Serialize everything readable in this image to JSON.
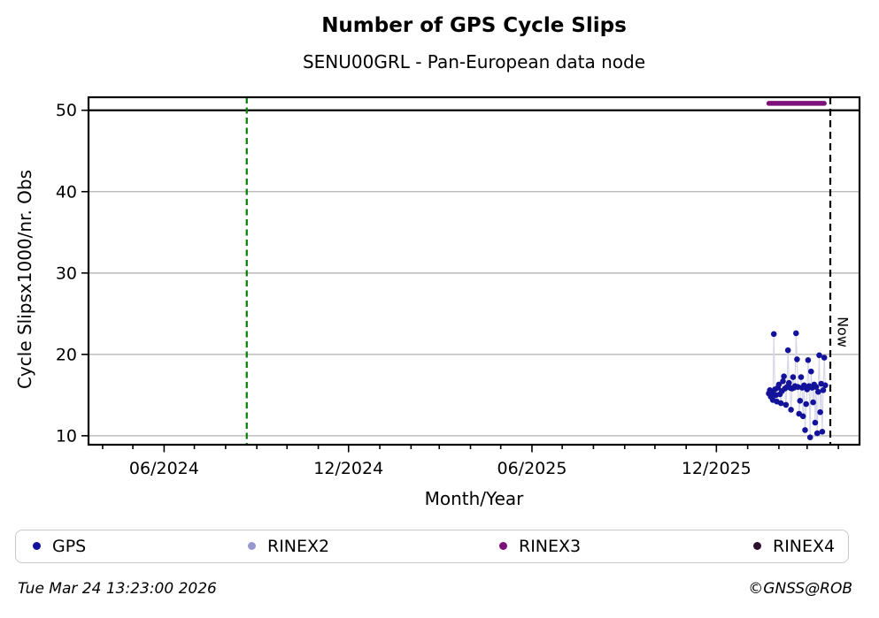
{
  "header": {
    "title": "Number of GPS Cycle Slips",
    "subtitle": "SENU00GRL - Pan-European data node"
  },
  "chart_data": {
    "type": "scatter",
    "title": "Number of GPS Cycle Slips",
    "subtitle": "SENU00GRL - Pan-European data node",
    "xlabel": "Month/Year",
    "ylabel": "Cycle Slipsx1000/nr. Obs",
    "x_range": [
      "2024-03-18",
      "2026-04-22"
    ],
    "y_range": [
      8.9,
      51.6
    ],
    "y_ticks": [
      10,
      20,
      30,
      40,
      50
    ],
    "x_major_ticks": [
      {
        "date": "2024-06-01",
        "label": "06/2024"
      },
      {
        "date": "2024-12-01",
        "label": "12/2024"
      },
      {
        "date": "2025-06-01",
        "label": "06/2025"
      },
      {
        "date": "2025-12-01",
        "label": "12/2025"
      }
    ],
    "x_minor_ticks": {
      "start": "2024-04-01",
      "end": "2026-04-01",
      "step_months": 1
    },
    "grid_color": "#b2b2b2",
    "cap_line": {
      "value": 50,
      "color": "#000000"
    },
    "green_event_line": {
      "date": "2024-08-22",
      "color": "#007f00"
    },
    "now_line": {
      "date": "2026-03-24",
      "label": "Now",
      "color": "#000000"
    },
    "series": [
      {
        "name": "GPS",
        "type": "scatter-line",
        "color": "#12129b",
        "connector_color": "#d6d6e8",
        "points": [
          [
            "2026-01-22",
            15.2
          ],
          [
            "2026-01-23",
            15.6
          ],
          [
            "2026-01-24",
            14.8
          ],
          [
            "2026-01-25",
            15.3
          ],
          [
            "2026-01-26",
            14.4
          ],
          [
            "2026-01-27",
            22.5
          ],
          [
            "2026-01-28",
            15.7
          ],
          [
            "2026-01-29",
            15.0
          ],
          [
            "2026-01-30",
            14.2
          ],
          [
            "2026-01-31",
            15.9
          ],
          [
            "2026-02-01",
            16.3
          ],
          [
            "2026-02-02",
            15.1
          ],
          [
            "2026-02-03",
            14.0
          ],
          [
            "2026-02-04",
            15.5
          ],
          [
            "2026-02-05",
            16.7
          ],
          [
            "2026-02-06",
            17.3
          ],
          [
            "2026-02-07",
            15.8
          ],
          [
            "2026-02-08",
            13.8
          ],
          [
            "2026-02-09",
            16.0
          ],
          [
            "2026-02-10",
            20.5
          ],
          [
            "2026-02-11",
            16.5
          ],
          [
            "2026-02-12",
            15.9
          ],
          [
            "2026-02-13",
            13.2
          ],
          [
            "2026-02-14",
            15.8
          ],
          [
            "2026-02-15",
            17.2
          ],
          [
            "2026-02-16",
            15.9
          ],
          [
            "2026-02-17",
            16.1
          ],
          [
            "2026-02-18",
            22.6
          ],
          [
            "2026-02-19",
            19.4
          ],
          [
            "2026-02-20",
            16.0
          ],
          [
            "2026-02-21",
            12.7
          ],
          [
            "2026-02-22",
            14.3
          ],
          [
            "2026-02-23",
            17.2
          ],
          [
            "2026-02-24",
            15.9
          ],
          [
            "2026-02-25",
            12.4
          ],
          [
            "2026-02-26",
            16.2
          ],
          [
            "2026-02-27",
            10.7
          ],
          [
            "2026-02-28",
            13.9
          ],
          [
            "2026-03-01",
            15.7
          ],
          [
            "2026-03-02",
            19.3
          ],
          [
            "2026-03-03",
            16.1
          ],
          [
            "2026-03-04",
            9.8
          ],
          [
            "2026-03-05",
            17.9
          ],
          [
            "2026-03-06",
            15.9
          ],
          [
            "2026-03-07",
            14.1
          ],
          [
            "2026-03-08",
            16.3
          ],
          [
            "2026-03-09",
            11.6
          ],
          [
            "2026-03-10",
            16.0
          ],
          [
            "2026-03-11",
            10.3
          ],
          [
            "2026-03-12",
            15.4
          ],
          [
            "2026-03-13",
            19.9
          ],
          [
            "2026-03-14",
            12.9
          ],
          [
            "2026-03-15",
            16.4
          ],
          [
            "2026-03-16",
            10.5
          ],
          [
            "2026-03-17",
            15.6
          ],
          [
            "2026-03-18",
            19.6
          ],
          [
            "2026-03-19",
            16.2
          ]
        ]
      },
      {
        "name": "RINEX3",
        "type": "band-line",
        "color": "#7c117c",
        "start": "2026-01-22",
        "end": "2026-03-18",
        "value": 50.85
      }
    ]
  },
  "legend": {
    "items": [
      {
        "label": "GPS",
        "color": "#12129b"
      },
      {
        "label": "RINEX2",
        "color": "#9898d0"
      },
      {
        "label": "RINEX3",
        "color": "#7c117c"
      },
      {
        "label": "RINEX4",
        "color": "#2c102c"
      }
    ]
  },
  "footer": {
    "timestamp": "Tue Mar 24 13:23:00 2026",
    "credit": "©GNSS@ROB"
  }
}
